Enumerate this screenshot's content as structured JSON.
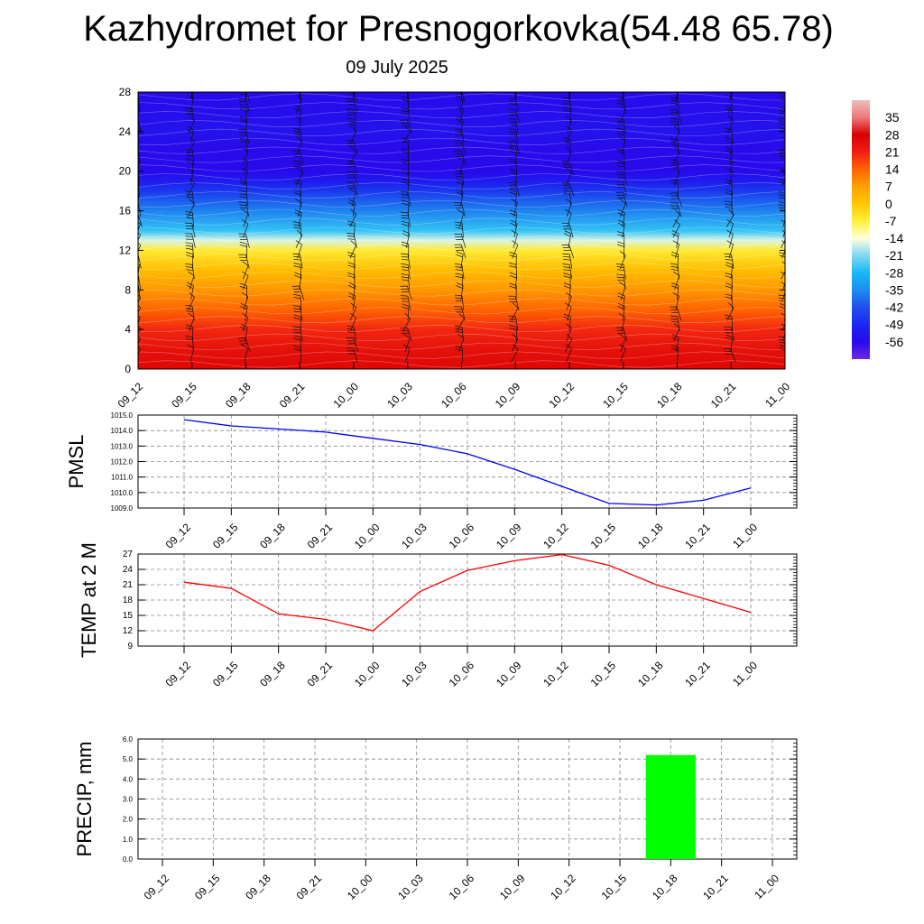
{
  "title": "Kazhydromet for Presnogorkovka(54.48 65.78)",
  "subtitle": "09 July 2025",
  "time_labels": [
    "09_12",
    "09_15",
    "09_18",
    "09_21",
    "10_00",
    "10_03",
    "10_06",
    "10_09",
    "10_12",
    "10_15",
    "10_18",
    "10_21",
    "11_00"
  ],
  "colors": {
    "pmsl_line": "#0000ff",
    "temp_line": "#ff0000",
    "precip_bar": "#00ff00",
    "grid": "#888888"
  },
  "chart_data": [
    {
      "type": "heatmap",
      "name": "temperature-height-section",
      "y_tick_labels": [
        "0",
        "4",
        "8",
        "12",
        "16",
        "20",
        "24",
        "28"
      ],
      "ylim": [
        0,
        28
      ],
      "x_tick_labels": [
        "09_12",
        "09_15",
        "09_18",
        "09_21",
        "10_00",
        "10_03",
        "10_06",
        "10_09",
        "10_12",
        "10_15",
        "10_18",
        "10_21",
        "11_00"
      ],
      "colorbar_labels": [
        "35",
        "28",
        "21",
        "14",
        "7",
        "0",
        "-7",
        "-14",
        "-21",
        "-28",
        "-35",
        "-42",
        "-49",
        "-56"
      ],
      "colorbar_range": [
        -63,
        42
      ],
      "profile_levels": [
        0,
        2,
        4,
        6,
        8,
        10,
        12,
        13,
        14,
        16,
        18,
        19,
        20,
        22,
        24,
        26,
        28
      ],
      "profile_values": [
        26,
        24,
        20,
        14,
        8,
        2,
        -6,
        -16,
        -26,
        -36,
        -46,
        -52,
        -56,
        -56,
        -54,
        -55,
        -56
      ],
      "wind_barbs": true,
      "grid": false
    },
    {
      "type": "line",
      "name": "pmsl",
      "ylabel": "PMSL",
      "x": [
        "09_12",
        "09_15",
        "09_18",
        "09_21",
        "10_00",
        "10_03",
        "10_06",
        "10_09",
        "10_12",
        "10_15",
        "10_18",
        "10_21",
        "11_00"
      ],
      "values": [
        1014.7,
        1014.3,
        1014.1,
        1013.9,
        1013.5,
        1013.1,
        1012.5,
        1011.5,
        1010.4,
        1009.3,
        1009.2,
        1009.5,
        1010.3
      ],
      "ylim": [
        1009.0,
        1015.0
      ],
      "y_tick_labels": [
        "1009.0",
        "1010.0",
        "1011.0",
        "1012.0",
        "1013.0",
        "1014.0",
        "1015.0"
      ],
      "grid": true
    },
    {
      "type": "line",
      "name": "temp-2m",
      "ylabel": "TEMP at 2 M",
      "x": [
        "09_12",
        "09_15",
        "09_18",
        "09_21",
        "10_00",
        "10_03",
        "10_06",
        "10_09",
        "10_12",
        "10_15",
        "10_18",
        "10_21",
        "11_00"
      ],
      "values": [
        21.5,
        20.3,
        15.3,
        14.2,
        12.0,
        19.7,
        23.8,
        25.7,
        26.9,
        24.8,
        21.0,
        18.3,
        15.6
      ],
      "ylim": [
        9,
        27
      ],
      "y_tick_labels": [
        "9",
        "12",
        "15",
        "18",
        "21",
        "24",
        "27"
      ],
      "grid": true
    },
    {
      "type": "bar",
      "name": "precip",
      "ylabel": "PRECIP, mm",
      "x": [
        "09_12",
        "09_15",
        "09_18",
        "09_21",
        "10_00",
        "10_03",
        "10_06",
        "10_09",
        "10_12",
        "10_15",
        "10_18",
        "10_21",
        "11_00"
      ],
      "values": [
        0,
        0,
        0,
        0,
        0,
        0,
        0,
        0,
        0,
        0,
        5.2,
        0,
        0
      ],
      "ylim": [
        0,
        6
      ],
      "y_tick_labels": [
        "0.0",
        "1.0",
        "2.0",
        "3.0",
        "4.0",
        "5.0",
        "6.0"
      ],
      "grid": true
    }
  ]
}
